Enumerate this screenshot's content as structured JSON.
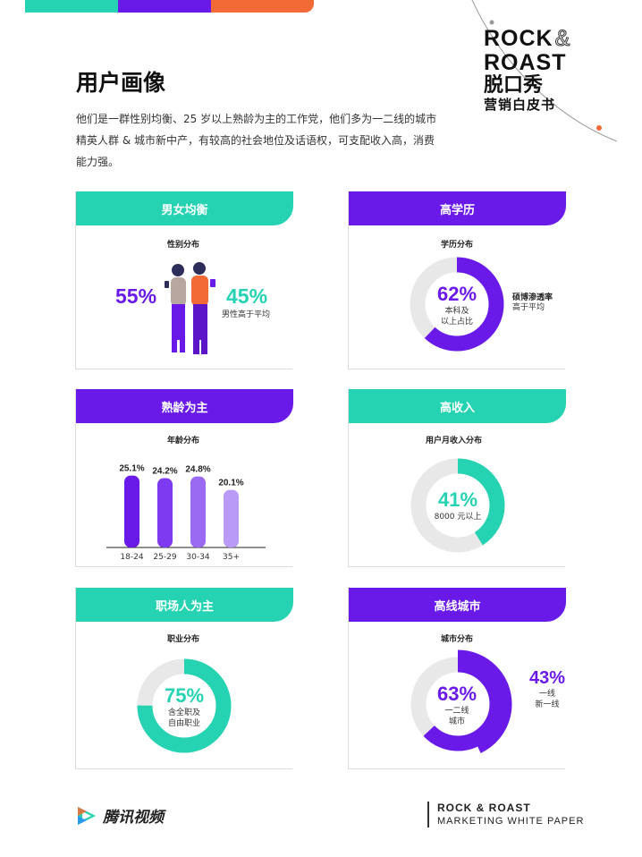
{
  "colors": {
    "purple": "#6a1ae8",
    "teal": "#25d3b3",
    "orange": "#f26a35",
    "grey": "#e5e5e5"
  },
  "brand": {
    "line1": "ROCK",
    "amp": "&",
    "line2": "ROAST",
    "cn_title": "脱口秀",
    "cn_sub": "营销白皮书"
  },
  "title": "用户画像",
  "intro": "他们是一群性别均衡、25 岁以上熟龄为主的工作党，他们多为一二线的城市精英人群 & 城市新中产，有较高的社会地位及话语权，可支配收入高，消费能力强。",
  "cards": {
    "gender": {
      "header": "男女均衡",
      "subtitle": "性别分布",
      "female_pct": "55%",
      "male_pct": "45%",
      "male_note": "男性高于平均",
      "icon": "couple-illustration"
    },
    "education": {
      "header": "高学历",
      "subtitle": "学历分布",
      "pct": "62%",
      "center_l1": "本科及",
      "center_l2": "以上占比",
      "side_l1": "硕博渗透率",
      "side_l2": "高于平均",
      "value": 0.62
    },
    "age": {
      "header": "熟龄为主",
      "subtitle": "年龄分布"
    },
    "income": {
      "header": "高收入",
      "subtitle": "用户月收入分布",
      "pct": "41%",
      "center_l1": "8000 元以上",
      "value": 0.41
    },
    "job": {
      "header": "职场人为主",
      "subtitle": "职业分布",
      "pct": "75%",
      "center_l1": "含全职及",
      "center_l2": "自由职业",
      "value": 0.75
    },
    "city": {
      "header": "高线城市",
      "subtitle": "城市分布",
      "pct": "63%",
      "center_l1": "一二线",
      "center_l2": "城市",
      "value": 0.63,
      "side_pct": "43%",
      "side_l1": "一线",
      "side_l2": "新一线",
      "side_value": 0.43
    }
  },
  "chart_data": {
    "type": "bar",
    "categories": [
      "18-24",
      "25-29",
      "30-34",
      "35+"
    ],
    "values": [
      25.1,
      24.2,
      24.8,
      20.1
    ],
    "labels": [
      "25.1%",
      "24.2%",
      "24.8%",
      "20.1%"
    ],
    "bar_colors": [
      "#6a1ae8",
      "#7d3af0",
      "#9b6af3",
      "#b99af7"
    ],
    "ylim": [
      0,
      30
    ]
  },
  "footer": {
    "logo_text": "腾讯视频",
    "right_l1": "ROCK & ROAST",
    "right_l2": "MARKETING WHITE PAPER"
  }
}
